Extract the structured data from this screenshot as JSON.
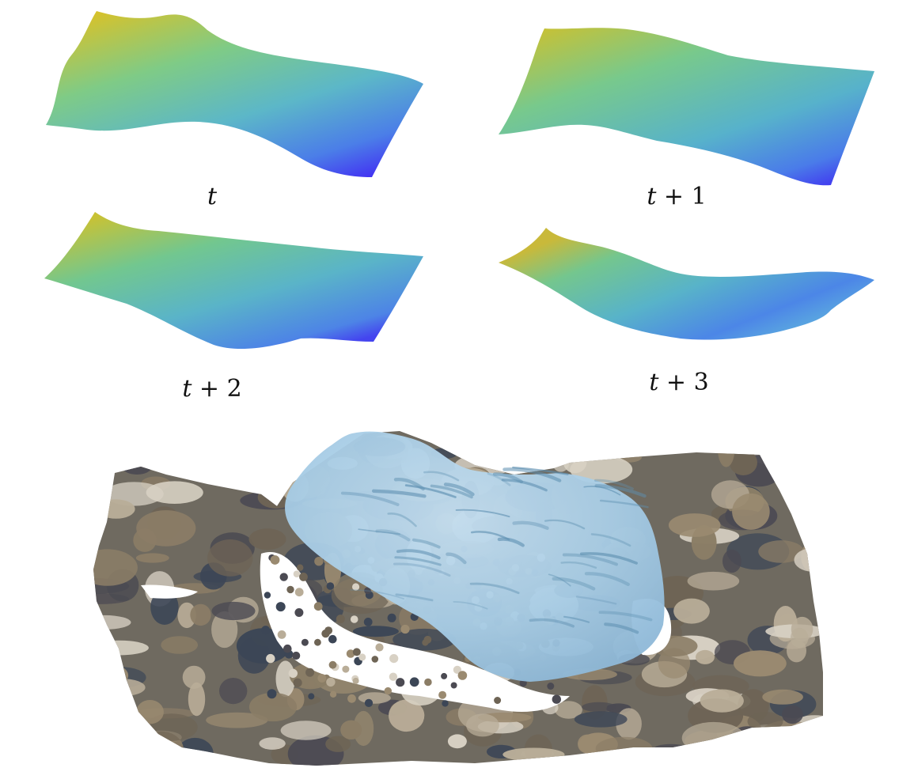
{
  "colors": {
    "surface_gradient": [
      "#d9c52a",
      "#7ccc8c",
      "#5bb6c9",
      "#4a86e8",
      "#4040f0"
    ],
    "water_fill": "#a9cfe8",
    "water_dark": "#5d8fb0",
    "rock_palette": [
      "#8b7d66",
      "#b9ad98",
      "#6e6455",
      "#4b4a52",
      "#d8d1c4",
      "#9a8a70",
      "#3c4656"
    ],
    "background": "#ffffff"
  },
  "frames": [
    {
      "label_var": "t",
      "label_rest": ""
    },
    {
      "label_var": "t",
      "label_rest": " + 1"
    },
    {
      "label_var": "t",
      "label_rest": " + 2"
    },
    {
      "label_var": "t",
      "label_rest": " + 3"
    }
  ]
}
